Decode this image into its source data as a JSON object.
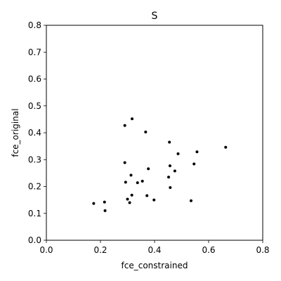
{
  "chart_data": {
    "type": "scatter",
    "title": "S",
    "xlabel": "fce_constrained",
    "ylabel": "fce_original",
    "xlim": [
      0.0,
      0.8
    ],
    "ylim": [
      0.0,
      0.8
    ],
    "xticks": [
      "0.0",
      "0.2",
      "0.4",
      "0.6",
      "0.8"
    ],
    "yticks": [
      "0.0",
      "0.1",
      "0.2",
      "0.3",
      "0.4",
      "0.5",
      "0.6",
      "0.7",
      "0.8"
    ],
    "grid": false,
    "marker_color": "#000000",
    "points": [
      {
        "x": 0.175,
        "y": 0.137
      },
      {
        "x": 0.215,
        "y": 0.142
      },
      {
        "x": 0.217,
        "y": 0.11
      },
      {
        "x": 0.29,
        "y": 0.427
      },
      {
        "x": 0.29,
        "y": 0.289
      },
      {
        "x": 0.293,
        "y": 0.216
      },
      {
        "x": 0.3,
        "y": 0.153
      },
      {
        "x": 0.308,
        "y": 0.14
      },
      {
        "x": 0.313,
        "y": 0.242
      },
      {
        "x": 0.316,
        "y": 0.168
      },
      {
        "x": 0.317,
        "y": 0.452
      },
      {
        "x": 0.337,
        "y": 0.214
      },
      {
        "x": 0.355,
        "y": 0.22
      },
      {
        "x": 0.367,
        "y": 0.403
      },
      {
        "x": 0.372,
        "y": 0.166
      },
      {
        "x": 0.377,
        "y": 0.266
      },
      {
        "x": 0.398,
        "y": 0.15
      },
      {
        "x": 0.452,
        "y": 0.235
      },
      {
        "x": 0.455,
        "y": 0.365
      },
      {
        "x": 0.457,
        "y": 0.277
      },
      {
        "x": 0.458,
        "y": 0.196
      },
      {
        "x": 0.475,
        "y": 0.258
      },
      {
        "x": 0.487,
        "y": 0.322
      },
      {
        "x": 0.535,
        "y": 0.147
      },
      {
        "x": 0.546,
        "y": 0.284
      },
      {
        "x": 0.557,
        "y": 0.329
      },
      {
        "x": 0.663,
        "y": 0.346
      }
    ]
  }
}
